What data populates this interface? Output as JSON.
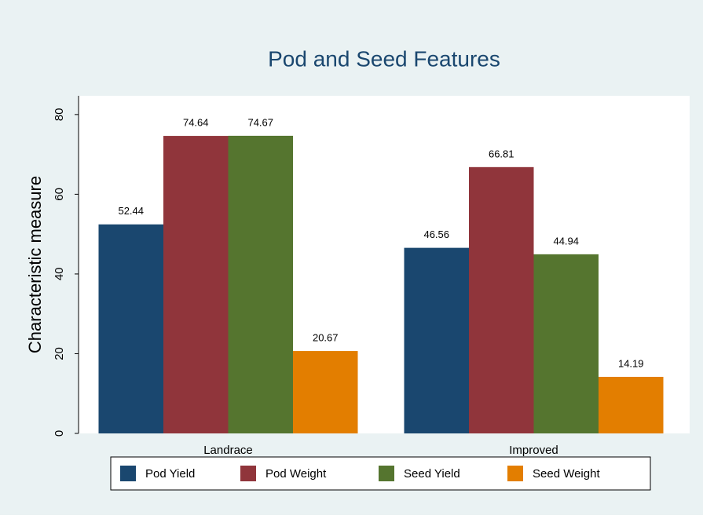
{
  "chart_data": {
    "type": "bar",
    "title": "Pod and Seed Features",
    "y_label": "Characteristic measure",
    "categories": [
      "Landrace",
      "Improved"
    ],
    "series": [
      {
        "name": "Pod Yield",
        "color": "#1a476f",
        "values": [
          52.44,
          46.56
        ]
      },
      {
        "name": "Pod Weight",
        "color": "#90353b",
        "values": [
          74.64,
          66.81
        ]
      },
      {
        "name": "Seed Yield",
        "color": "#55752f",
        "values": [
          74.67,
          44.94
        ]
      },
      {
        "name": "Seed Weight",
        "color": "#e37e00",
        "values": [
          20.67,
          14.19
        ]
      }
    ],
    "ylim": [
      0,
      84.7
    ],
    "yticks": [
      0,
      20,
      40,
      60,
      80
    ],
    "grid": false,
    "legend": "bottom"
  }
}
